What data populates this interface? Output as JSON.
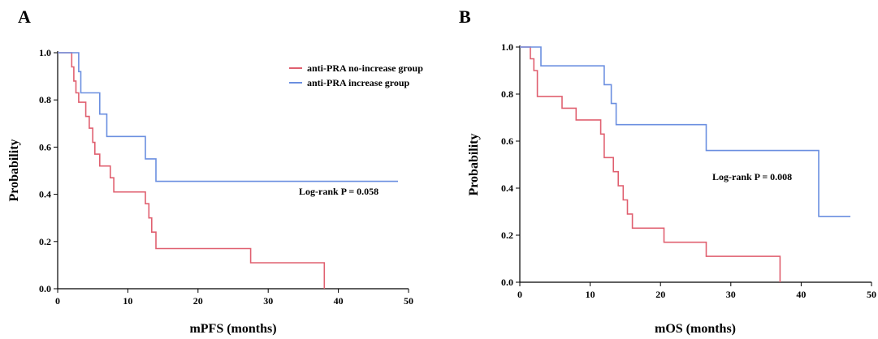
{
  "chart_data": [
    {
      "type": "line",
      "panel": "A",
      "xlabel": "mPFS (months)",
      "ylabel": "Probability",
      "xlim": [
        0,
        50
      ],
      "ylim": [
        0,
        1.0
      ],
      "xticks": [
        "0",
        "10",
        "20",
        "30",
        "40",
        "50"
      ],
      "yticks": [
        "0.0",
        "0.2",
        "0.4",
        "0.6",
        "0.8",
        "1.0"
      ],
      "legend": "top-right",
      "annotation": "Log-rank P = 0.058",
      "series": [
        {
          "name": "anti-PRA no-increase group",
          "color": "#e06070",
          "x": [
            0,
            2.0,
            2.3,
            2.6,
            3.0,
            4.0,
            4.5,
            5.0,
            5.3,
            6.0,
            7.5,
            8.0,
            12.5,
            13.0,
            13.4,
            14.0,
            27.5,
            38.0
          ],
          "y": [
            1.0,
            0.94,
            0.88,
            0.83,
            0.79,
            0.73,
            0.68,
            0.62,
            0.57,
            0.52,
            0.47,
            0.41,
            0.36,
            0.3,
            0.24,
            0.17,
            0.11,
            0.0
          ]
        },
        {
          "name": "anti-PRA increase group",
          "color": "#6b8fe0",
          "x": [
            0,
            3.0,
            3.3,
            6.0,
            7.0,
            12.5,
            14.0,
            48.5
          ],
          "y": [
            1.0,
            0.92,
            0.83,
            0.74,
            0.645,
            0.55,
            0.455,
            0.455
          ]
        }
      ]
    },
    {
      "type": "line",
      "panel": "B",
      "xlabel": "mOS (months)",
      "ylabel": "Probability",
      "xlim": [
        0,
        50
      ],
      "ylim": [
        0,
        1.0
      ],
      "xticks": [
        "0",
        "10",
        "20",
        "30",
        "40",
        "50"
      ],
      "yticks": [
        "0.0",
        "0.2",
        "0.4",
        "0.6",
        "0.8",
        "1.0"
      ],
      "annotation": "Log-rank P = 0.008",
      "series": [
        {
          "color": "#e06070",
          "x": [
            0,
            1.5,
            2.0,
            2.5,
            6.0,
            8.0,
            11.5,
            12.0,
            13.3,
            14.0,
            14.7,
            15.3,
            16.0,
            20.5,
            26.5,
            37.0
          ],
          "y": [
            1.0,
            0.95,
            0.9,
            0.79,
            0.74,
            0.69,
            0.63,
            0.53,
            0.47,
            0.41,
            0.35,
            0.29,
            0.23,
            0.17,
            0.11,
            0.0
          ]
        },
        {
          "color": "#6b8fe0",
          "x": [
            0,
            3.0,
            12.0,
            13.0,
            13.7,
            14.3,
            26.5,
            42.5,
            47.0
          ],
          "y": [
            1.0,
            0.92,
            0.84,
            0.76,
            0.67,
            0.67,
            0.56,
            0.28,
            0.28
          ]
        }
      ]
    }
  ]
}
